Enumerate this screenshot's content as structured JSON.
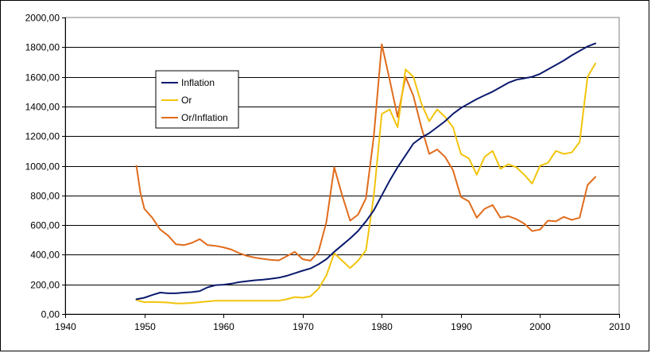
{
  "chart_data": {
    "type": "line",
    "xlim": [
      1940,
      2010
    ],
    "ylim": [
      0,
      2000
    ],
    "x_ticks": [
      "1940",
      "1950",
      "1960",
      "1970",
      "1980",
      "1990",
      "2000",
      "2010"
    ],
    "y_ticks": [
      "0,00",
      "200,00",
      "400,00",
      "600,00",
      "800,00",
      "1000,00",
      "1200,00",
      "1400,00",
      "1600,00",
      "1800,00",
      "2000,00"
    ],
    "grid": "horizontal",
    "legend_position": "upper-left",
    "series": [
      {
        "name": "Inflation",
        "color": "#0a1a6e",
        "x": [
          1949,
          1950,
          1951,
          1952,
          1953,
          1954,
          1955,
          1956,
          1957,
          1958,
          1959,
          1960,
          1961,
          1962,
          1963,
          1964,
          1965,
          1966,
          1967,
          1968,
          1969,
          1970,
          1971,
          1972,
          1973,
          1974,
          1975,
          1976,
          1977,
          1978,
          1979,
          1980,
          1981,
          1982,
          1983,
          1984,
          1985,
          1986,
          1987,
          1988,
          1989,
          1990,
          1991,
          1992,
          1993,
          1994,
          1995,
          1996,
          1997,
          1998,
          1999,
          2000,
          2001,
          2002,
          2003,
          2004,
          2005,
          2006,
          2007
        ],
        "y": [
          100,
          110,
          128,
          145,
          140,
          140,
          145,
          148,
          155,
          180,
          195,
          198,
          205,
          215,
          222,
          228,
          232,
          238,
          245,
          258,
          275,
          292,
          308,
          335,
          370,
          420,
          465,
          510,
          560,
          625,
          700,
          800,
          900,
          990,
          1070,
          1150,
          1190,
          1220,
          1260,
          1300,
          1350,
          1390,
          1420,
          1450,
          1475,
          1500,
          1530,
          1560,
          1580,
          1590,
          1600,
          1620,
          1650,
          1680,
          1710,
          1745,
          1775,
          1805,
          1825
        ]
      },
      {
        "name": "Or",
        "color": "#f2c40c",
        "x": [
          1949,
          1950,
          1951,
          1952,
          1953,
          1954,
          1955,
          1956,
          1957,
          1958,
          1959,
          1960,
          1961,
          1962,
          1963,
          1964,
          1965,
          1966,
          1967,
          1968,
          1969,
          1970,
          1971,
          1972,
          1973,
          1974,
          1975,
          1976,
          1977,
          1978,
          1979,
          1980,
          1981,
          1982,
          1983,
          1984,
          1985,
          1986,
          1987,
          1988,
          1989,
          1990,
          1991,
          1992,
          1993,
          1994,
          1995,
          1996,
          1997,
          1998,
          1999,
          2000,
          2001,
          2002,
          2003,
          2004,
          2005,
          2006,
          2007
        ],
        "y": [
          95,
          80,
          82,
          80,
          78,
          72,
          72,
          75,
          80,
          85,
          90,
          90,
          90,
          90,
          90,
          90,
          90,
          90,
          90,
          100,
          115,
          110,
          120,
          170,
          260,
          410,
          360,
          310,
          360,
          430,
          800,
          1350,
          1380,
          1260,
          1650,
          1600,
          1420,
          1300,
          1380,
          1330,
          1260,
          1080,
          1050,
          940,
          1060,
          1100,
          980,
          1010,
          990,
          940,
          880,
          1000,
          1020,
          1100,
          1080,
          1090,
          1160,
          1600,
          1690
        ]
      },
      {
        "name": "Or/Inflation",
        "color": "#e06c1c",
        "x": [
          1949,
          1949.5,
          1950,
          1951,
          1952,
          1953,
          1954,
          1955,
          1956,
          1957,
          1958,
          1959,
          1960,
          1961,
          1962,
          1963,
          1964,
          1965,
          1966,
          1967,
          1968,
          1969,
          1970,
          1971,
          1972,
          1973,
          1974,
          1975,
          1976,
          1977,
          1978,
          1979,
          1980,
          1981,
          1982,
          1983,
          1984,
          1985,
          1986,
          1987,
          1988,
          1989,
          1990,
          1991,
          1992,
          1993,
          1994,
          1995,
          1996,
          1997,
          1998,
          1999,
          2000,
          2001,
          2002,
          2003,
          2004,
          2005,
          2006,
          2007
        ],
        "y": [
          1000,
          820,
          710,
          650,
          570,
          530,
          470,
          465,
          480,
          505,
          465,
          460,
          450,
          435,
          410,
          392,
          380,
          372,
          365,
          362,
          390,
          420,
          370,
          360,
          420,
          620,
          990,
          800,
          630,
          670,
          780,
          1200,
          1820,
          1580,
          1330,
          1600,
          1470,
          1260,
          1080,
          1110,
          1060,
          970,
          790,
          760,
          650,
          710,
          735,
          650,
          660,
          640,
          610,
          560,
          570,
          630,
          625,
          655,
          635,
          650,
          870,
          925
        ]
      }
    ]
  }
}
